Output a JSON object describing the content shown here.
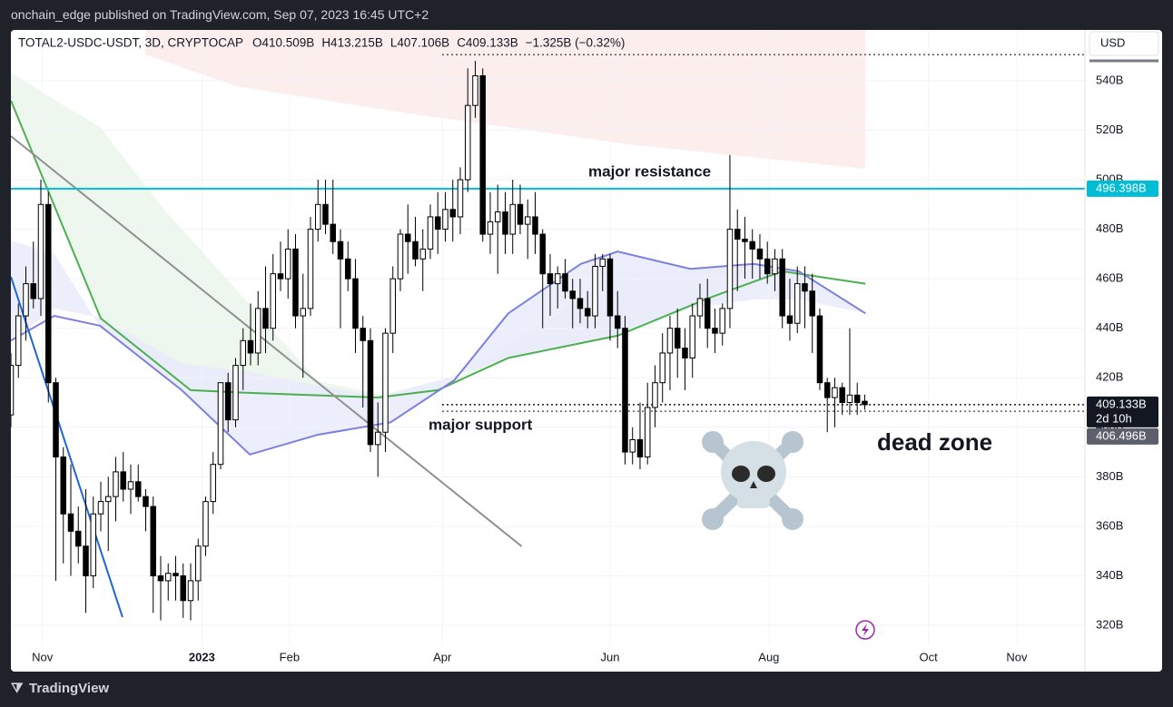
{
  "header": {
    "published": "onchain_edge published on TradingView.com, Sep 07, 2023 16:45 UTC+2",
    "brand": "TradingView"
  },
  "chart_data": {
    "type": "candlestick",
    "symbol": "TOTAL2-USDC-USDT, 3D, CRYPTOCAP",
    "legend_values": [
      "O410.509B",
      "H413.215B",
      "L407.106B",
      "C409.133B",
      "−1.325B (−0.32%)"
    ],
    "currency": "USD",
    "open": [
      405,
      425,
      445,
      458,
      452,
      490,
      418,
      388,
      365,
      358,
      352,
      340,
      365,
      370,
      372,
      382,
      375,
      378,
      372,
      368,
      340,
      338,
      341,
      340,
      330,
      338,
      352,
      370,
      385,
      418,
      403,
      425,
      435,
      430,
      448,
      440,
      462,
      460,
      472,
      445,
      448,
      480,
      490,
      482,
      475,
      468,
      460,
      440,
      435,
      393,
      398,
      438,
      460,
      478,
      475,
      468,
      472,
      485,
      480,
      488,
      485,
      500,
      530,
      542,
      478,
      483,
      487,
      478,
      490,
      482,
      485,
      478,
      462,
      458,
      462,
      455,
      452,
      448,
      445,
      465,
      468,
      445,
      440,
      390,
      395,
      388,
      408,
      418,
      430,
      440,
      432,
      428,
      445,
      452,
      440,
      438,
      448,
      480,
      476,
      475,
      472,
      468,
      462,
      468,
      445,
      442,
      458,
      455,
      445,
      418,
      412,
      416,
      410,
      413,
      410.509
    ],
    "high": [
      430,
      450,
      465,
      475,
      500,
      495,
      420,
      392,
      385,
      368,
      375,
      372,
      378,
      380,
      388,
      390,
      385,
      385,
      375,
      372,
      348,
      345,
      348,
      345,
      345,
      355,
      372,
      390,
      418,
      422,
      428,
      440,
      450,
      455,
      465,
      470,
      475,
      480,
      478,
      462,
      485,
      500,
      500,
      500,
      480,
      475,
      468,
      445,
      440,
      410,
      440,
      465,
      480,
      490,
      485,
      480,
      490,
      495,
      495,
      500,
      505,
      545,
      548,
      545,
      495,
      498,
      495,
      500,
      498,
      492,
      495,
      480,
      470,
      465,
      468,
      460,
      460,
      455,
      470,
      470,
      470,
      455,
      445,
      400,
      410,
      418,
      425,
      438,
      445,
      448,
      440,
      450,
      458,
      460,
      448,
      450,
      510,
      488,
      485,
      480,
      478,
      475,
      472,
      472,
      460,
      465,
      465,
      462,
      448,
      420,
      420,
      418,
      440,
      418,
      413.215
    ],
    "low": [
      400,
      420,
      435,
      448,
      445,
      410,
      338,
      345,
      340,
      345,
      325,
      335,
      358,
      350,
      362,
      370,
      365,
      370,
      358,
      325,
      322,
      330,
      330,
      323,
      322,
      330,
      348,
      365,
      383,
      398,
      400,
      415,
      425,
      425,
      430,
      435,
      455,
      452,
      440,
      420,
      445,
      475,
      478,
      470,
      440,
      455,
      430,
      408,
      390,
      380,
      390,
      430,
      455,
      462,
      465,
      455,
      468,
      470,
      475,
      475,
      478,
      495,
      525,
      475,
      470,
      462,
      470,
      470,
      478,
      468,
      470,
      440,
      445,
      448,
      452,
      440,
      442,
      440,
      440,
      455,
      435,
      432,
      385,
      385,
      383,
      385,
      400,
      410,
      415,
      420,
      415,
      420,
      440,
      432,
      430,
      433,
      440,
      455,
      460,
      460,
      460,
      458,
      455,
      440,
      435,
      438,
      440,
      430,
      415,
      398,
      400,
      405,
      405,
      405,
      407.106
    ],
    "close": [
      425,
      445,
      458,
      452,
      490,
      418,
      388,
      365,
      358,
      352,
      340,
      365,
      370,
      372,
      382,
      375,
      378,
      372,
      368,
      340,
      338,
      341,
      340,
      330,
      338,
      352,
      370,
      385,
      418,
      403,
      425,
      435,
      430,
      448,
      440,
      462,
      460,
      472,
      445,
      448,
      480,
      490,
      482,
      475,
      468,
      460,
      440,
      435,
      393,
      398,
      438,
      460,
      478,
      475,
      468,
      472,
      485,
      480,
      488,
      485,
      500,
      530,
      542,
      478,
      483,
      487,
      478,
      490,
      482,
      485,
      478,
      462,
      458,
      462,
      455,
      452,
      448,
      445,
      465,
      468,
      445,
      440,
      390,
      395,
      388,
      408,
      418,
      430,
      440,
      432,
      428,
      445,
      452,
      440,
      438,
      448,
      480,
      476,
      475,
      472,
      468,
      462,
      468,
      445,
      442,
      458,
      455,
      445,
      418,
      412,
      416,
      410,
      413,
      410,
      409.133
    ],
    "xlim": [
      0,
      143.4
    ],
    "xticks": [
      {
        "value": 4.2,
        "label": "Nov"
      },
      {
        "value": 25.5,
        "label": "2023"
      },
      {
        "value": 37.2,
        "label": "Feb"
      },
      {
        "value": 57.6,
        "label": "Apr"
      },
      {
        "value": 80,
        "label": "Jun"
      },
      {
        "value": 101.2,
        "label": "Aug"
      },
      {
        "value": 122.5,
        "label": "Oct"
      },
      {
        "value": 134.3,
        "label": "Nov"
      }
    ],
    "ylim": [
      312.3,
      560.5
    ],
    "yticks": [
      {
        "value": 320,
        "label": "320B"
      },
      {
        "value": 340,
        "label": "340B"
      },
      {
        "value": 360,
        "label": "360B"
      },
      {
        "value": 380,
        "label": "380B"
      },
      {
        "value": 400,
        "label": "400B"
      },
      {
        "value": 420,
        "label": "420B"
      },
      {
        "value": 440,
        "label": "440B"
      },
      {
        "value": 460,
        "label": "460B"
      },
      {
        "value": 480,
        "label": "480B"
      },
      {
        "value": 500,
        "label": "500B"
      },
      {
        "value": 520,
        "label": "520B"
      },
      {
        "value": 540,
        "label": "540B"
      }
    ],
    "overlays": [
      {
        "color": "#4caf50",
        "x": [
          0,
          12,
          24,
          31,
          49,
          57,
          66.4,
          81,
          93,
          103,
          114.1
        ],
        "values": [
          532,
          444,
          415,
          414,
          412,
          415,
          428,
          437,
          452,
          463,
          458
        ]
      },
      {
        "color": "#7b7fe0",
        "x": [
          0,
          5.8,
          11.9,
          22.8,
          31.9,
          41,
          50.7,
          59.2,
          66.4,
          76.1,
          81,
          90.7,
          99.2,
          105.2,
          114.1
        ],
        "values": [
          435,
          445,
          441,
          415,
          389,
          397,
          402,
          419,
          446,
          466,
          471,
          464,
          466,
          463,
          446
        ]
      },
      {
        "color": "#909090",
        "x": [
          0,
          68.2
        ],
        "values": [
          517.6,
          351.9
        ]
      },
      {
        "color": "#1e66d8",
        "x": [
          0,
          14.9
        ],
        "values": [
          460.8,
          323.3
        ]
      }
    ],
    "price_lines": [
      {
        "value": 496.398,
        "label": "496.398B",
        "color": "#00bcd4",
        "style": "solid"
      },
      {
        "value": 409.133,
        "label": "409.133B",
        "color": "#131722",
        "style": "dotted",
        "countdown": "2d 10h"
      },
      {
        "value": 406.496,
        "label": "406.496B",
        "color": "#5d606b",
        "style": "dotted"
      },
      {
        "value": 550.5,
        "color": "#555",
        "style": "dotted"
      }
    ],
    "annotations": [
      "major resistance",
      "major support",
      "dead zone"
    ]
  }
}
